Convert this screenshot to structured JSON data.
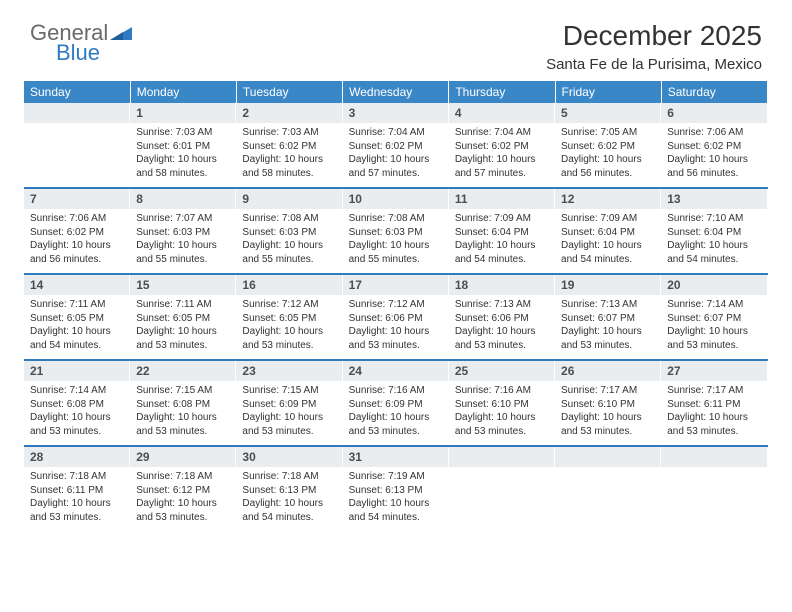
{
  "logo": {
    "general": "General",
    "blue": "Blue"
  },
  "title": "December 2025",
  "subtitle": "Santa Fe de la Purisima, Mexico",
  "day_headers": [
    "Sunday",
    "Monday",
    "Tuesday",
    "Wednesday",
    "Thursday",
    "Friday",
    "Saturday"
  ],
  "header_bg": "#3a87c7",
  "header_text_color": "#ffffff",
  "daynum_bg": "#e9edef",
  "divider_color": "#2f7bbf",
  "body_text_color": "#333333",
  "background_color": "#ffffff",
  "font_family": "Arial, Helvetica, sans-serif",
  "title_fontsize": 28,
  "subtitle_fontsize": 15,
  "header_fontsize": 12,
  "daynum_fontsize": 12,
  "info_fontsize": 10,
  "weeks": [
    [
      null,
      {
        "n": "1",
        "sr": "Sunrise: 7:03 AM",
        "ss": "Sunset: 6:01 PM",
        "d1": "Daylight: 10 hours",
        "d2": "and 58 minutes."
      },
      {
        "n": "2",
        "sr": "Sunrise: 7:03 AM",
        "ss": "Sunset: 6:02 PM",
        "d1": "Daylight: 10 hours",
        "d2": "and 58 minutes."
      },
      {
        "n": "3",
        "sr": "Sunrise: 7:04 AM",
        "ss": "Sunset: 6:02 PM",
        "d1": "Daylight: 10 hours",
        "d2": "and 57 minutes."
      },
      {
        "n": "4",
        "sr": "Sunrise: 7:04 AM",
        "ss": "Sunset: 6:02 PM",
        "d1": "Daylight: 10 hours",
        "d2": "and 57 minutes."
      },
      {
        "n": "5",
        "sr": "Sunrise: 7:05 AM",
        "ss": "Sunset: 6:02 PM",
        "d1": "Daylight: 10 hours",
        "d2": "and 56 minutes."
      },
      {
        "n": "6",
        "sr": "Sunrise: 7:06 AM",
        "ss": "Sunset: 6:02 PM",
        "d1": "Daylight: 10 hours",
        "d2": "and 56 minutes."
      }
    ],
    [
      {
        "n": "7",
        "sr": "Sunrise: 7:06 AM",
        "ss": "Sunset: 6:02 PM",
        "d1": "Daylight: 10 hours",
        "d2": "and 56 minutes."
      },
      {
        "n": "8",
        "sr": "Sunrise: 7:07 AM",
        "ss": "Sunset: 6:03 PM",
        "d1": "Daylight: 10 hours",
        "d2": "and 55 minutes."
      },
      {
        "n": "9",
        "sr": "Sunrise: 7:08 AM",
        "ss": "Sunset: 6:03 PM",
        "d1": "Daylight: 10 hours",
        "d2": "and 55 minutes."
      },
      {
        "n": "10",
        "sr": "Sunrise: 7:08 AM",
        "ss": "Sunset: 6:03 PM",
        "d1": "Daylight: 10 hours",
        "d2": "and 55 minutes."
      },
      {
        "n": "11",
        "sr": "Sunrise: 7:09 AM",
        "ss": "Sunset: 6:04 PM",
        "d1": "Daylight: 10 hours",
        "d2": "and 54 minutes."
      },
      {
        "n": "12",
        "sr": "Sunrise: 7:09 AM",
        "ss": "Sunset: 6:04 PM",
        "d1": "Daylight: 10 hours",
        "d2": "and 54 minutes."
      },
      {
        "n": "13",
        "sr": "Sunrise: 7:10 AM",
        "ss": "Sunset: 6:04 PM",
        "d1": "Daylight: 10 hours",
        "d2": "and 54 minutes."
      }
    ],
    [
      {
        "n": "14",
        "sr": "Sunrise: 7:11 AM",
        "ss": "Sunset: 6:05 PM",
        "d1": "Daylight: 10 hours",
        "d2": "and 54 minutes."
      },
      {
        "n": "15",
        "sr": "Sunrise: 7:11 AM",
        "ss": "Sunset: 6:05 PM",
        "d1": "Daylight: 10 hours",
        "d2": "and 53 minutes."
      },
      {
        "n": "16",
        "sr": "Sunrise: 7:12 AM",
        "ss": "Sunset: 6:05 PM",
        "d1": "Daylight: 10 hours",
        "d2": "and 53 minutes."
      },
      {
        "n": "17",
        "sr": "Sunrise: 7:12 AM",
        "ss": "Sunset: 6:06 PM",
        "d1": "Daylight: 10 hours",
        "d2": "and 53 minutes."
      },
      {
        "n": "18",
        "sr": "Sunrise: 7:13 AM",
        "ss": "Sunset: 6:06 PM",
        "d1": "Daylight: 10 hours",
        "d2": "and 53 minutes."
      },
      {
        "n": "19",
        "sr": "Sunrise: 7:13 AM",
        "ss": "Sunset: 6:07 PM",
        "d1": "Daylight: 10 hours",
        "d2": "and 53 minutes."
      },
      {
        "n": "20",
        "sr": "Sunrise: 7:14 AM",
        "ss": "Sunset: 6:07 PM",
        "d1": "Daylight: 10 hours",
        "d2": "and 53 minutes."
      }
    ],
    [
      {
        "n": "21",
        "sr": "Sunrise: 7:14 AM",
        "ss": "Sunset: 6:08 PM",
        "d1": "Daylight: 10 hours",
        "d2": "and 53 minutes."
      },
      {
        "n": "22",
        "sr": "Sunrise: 7:15 AM",
        "ss": "Sunset: 6:08 PM",
        "d1": "Daylight: 10 hours",
        "d2": "and 53 minutes."
      },
      {
        "n": "23",
        "sr": "Sunrise: 7:15 AM",
        "ss": "Sunset: 6:09 PM",
        "d1": "Daylight: 10 hours",
        "d2": "and 53 minutes."
      },
      {
        "n": "24",
        "sr": "Sunrise: 7:16 AM",
        "ss": "Sunset: 6:09 PM",
        "d1": "Daylight: 10 hours",
        "d2": "and 53 minutes."
      },
      {
        "n": "25",
        "sr": "Sunrise: 7:16 AM",
        "ss": "Sunset: 6:10 PM",
        "d1": "Daylight: 10 hours",
        "d2": "and 53 minutes."
      },
      {
        "n": "26",
        "sr": "Sunrise: 7:17 AM",
        "ss": "Sunset: 6:10 PM",
        "d1": "Daylight: 10 hours",
        "d2": "and 53 minutes."
      },
      {
        "n": "27",
        "sr": "Sunrise: 7:17 AM",
        "ss": "Sunset: 6:11 PM",
        "d1": "Daylight: 10 hours",
        "d2": "and 53 minutes."
      }
    ],
    [
      {
        "n": "28",
        "sr": "Sunrise: 7:18 AM",
        "ss": "Sunset: 6:11 PM",
        "d1": "Daylight: 10 hours",
        "d2": "and 53 minutes."
      },
      {
        "n": "29",
        "sr": "Sunrise: 7:18 AM",
        "ss": "Sunset: 6:12 PM",
        "d1": "Daylight: 10 hours",
        "d2": "and 53 minutes."
      },
      {
        "n": "30",
        "sr": "Sunrise: 7:18 AM",
        "ss": "Sunset: 6:13 PM",
        "d1": "Daylight: 10 hours",
        "d2": "and 54 minutes."
      },
      {
        "n": "31",
        "sr": "Sunrise: 7:19 AM",
        "ss": "Sunset: 6:13 PM",
        "d1": "Daylight: 10 hours",
        "d2": "and 54 minutes."
      },
      null,
      null,
      null
    ]
  ]
}
